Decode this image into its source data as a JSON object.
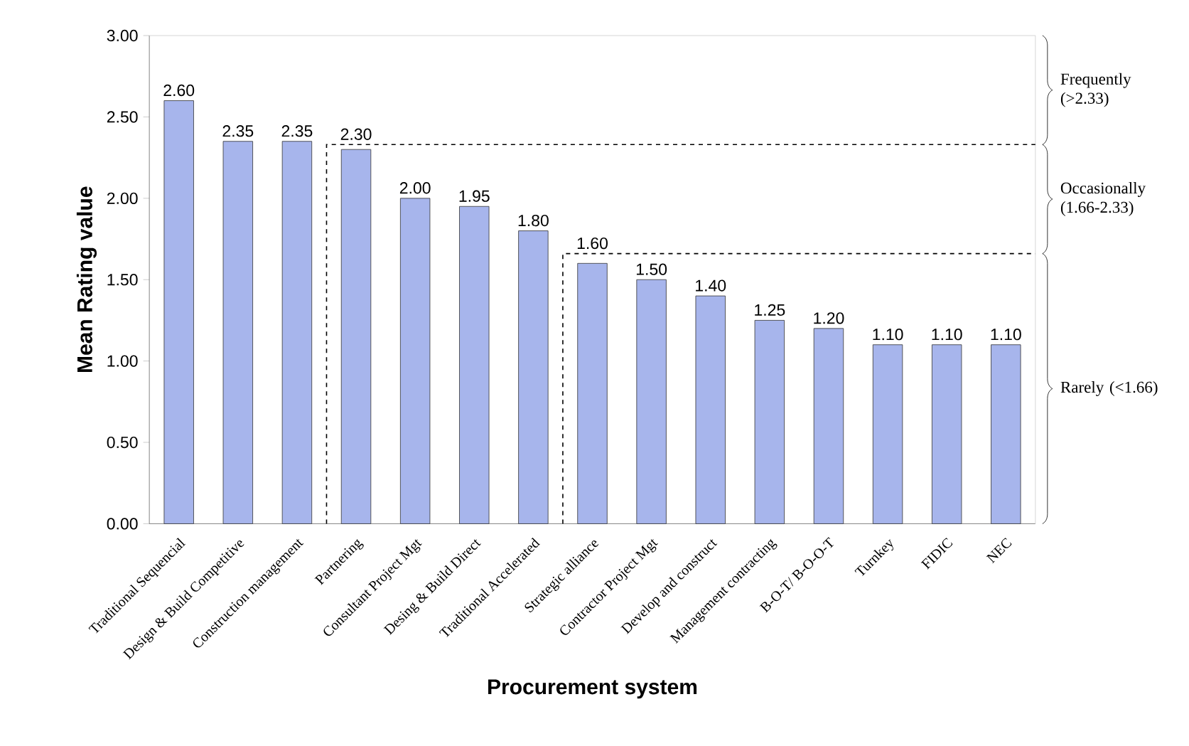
{
  "chart_data": {
    "type": "bar",
    "xlabel": "Procurement system",
    "ylabel": "Mean Rating value",
    "categories": [
      "Traditional Sequencial",
      "Design & Build Competitive",
      "Construction management",
      "Partnering",
      "Consultant Project Mgt",
      "Desing & Build Direct",
      "Traditional Accelerated",
      "Strategic alliance",
      "Contractor Project Mgt",
      "Develop and construct",
      "Management contracting",
      "B-O-T/ B-O-O-T",
      "Turnkey",
      "FIDIC",
      "NEC"
    ],
    "values": [
      2.6,
      2.35,
      2.35,
      2.3,
      2.0,
      1.95,
      1.8,
      1.6,
      1.5,
      1.4,
      1.25,
      1.2,
      1.1,
      1.1,
      1.1
    ],
    "value_labels": [
      "2.60",
      "2.35",
      "2.35",
      "2.30",
      "2.00",
      "1.95",
      "1.80",
      "1.60",
      "1.50",
      "1.40",
      "1.25",
      "1.20",
      "1.10",
      "1.10",
      "1.10"
    ],
    "color": "#a7b5ec",
    "ylim": [
      0,
      3
    ],
    "yticks": [
      {
        "value": 0,
        "label": "0.00"
      },
      {
        "value": 0.5,
        "label": "0.50"
      },
      {
        "value": 1,
        "label": "1.00"
      },
      {
        "value": 1.5,
        "label": "1.50"
      },
      {
        "value": 2,
        "label": "2.00"
      },
      {
        "value": 2.5,
        "label": "2.50"
      },
      {
        "value": 3,
        "label": "3.00"
      }
    ],
    "ref_lines": [
      {
        "axis": "y",
        "value": 2.33,
        "line_style": "dashed"
      },
      {
        "axis": "y",
        "value": 1.66,
        "line_style": "dashed"
      }
    ],
    "annotations": [
      "Frequently (>2.33)",
      "Occasionally (1.66-2.33)",
      "Rarely (<1.66)"
    ],
    "grid": false
  }
}
